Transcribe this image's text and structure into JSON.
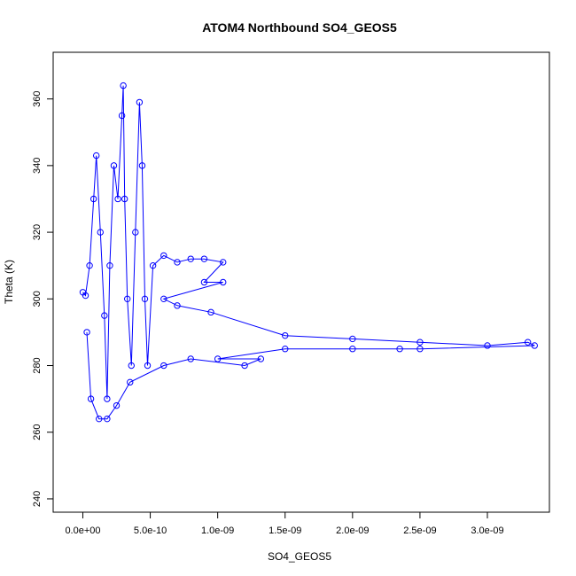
{
  "chart_data": {
    "type": "scatter",
    "title": "ATOM4 Northbound SO4_GEOS5",
    "xlabel": "SO4_GEOS5",
    "ylabel": "Theta (K)",
    "xlim": [
      -2.2e-10,
      3.46e-09
    ],
    "ylim": [
      236,
      374
    ],
    "x_ticks": [
      0,
      5e-10,
      1e-09,
      1.5e-09,
      2e-09,
      2.5e-09,
      3e-09
    ],
    "x_tick_labels": [
      "0.0e+00",
      "5.0e-10",
      "1.0e-09",
      "1.5e-09",
      "2.0e-09",
      "2.5e-09",
      "3.0e-09"
    ],
    "y_ticks": [
      240,
      260,
      280,
      300,
      320,
      340,
      360
    ],
    "y_tick_labels": [
      "240",
      "260",
      "280",
      "300",
      "320",
      "340",
      "360"
    ],
    "grid": false,
    "legend": "none",
    "color": "#0000ff",
    "marker": "open-circle",
    "connected": true,
    "series": [
      {
        "points": [
          [
            0.0,
            302
          ],
          [
            2e-11,
            301
          ],
          [
            5e-11,
            310
          ],
          [
            8e-11,
            330
          ],
          [
            1e-10,
            343
          ],
          [
            1.3e-10,
            320
          ],
          [
            1.6e-10,
            295
          ],
          [
            1.8e-10,
            270
          ],
          [
            2e-10,
            310
          ],
          [
            2.3e-10,
            340
          ],
          [
            2.6e-10,
            330
          ],
          [
            2.9e-10,
            355
          ],
          [
            3e-10,
            364
          ],
          [
            3.1e-10,
            330
          ],
          [
            3.3e-10,
            300
          ],
          [
            3.6e-10,
            280
          ],
          [
            3.9e-10,
            320
          ],
          [
            4.2e-10,
            359
          ],
          [
            4.4e-10,
            340
          ],
          [
            4.6e-10,
            300
          ],
          [
            4.8e-10,
            280
          ],
          [
            5.2e-10,
            310
          ],
          [
            6e-10,
            313
          ],
          [
            7e-10,
            311
          ],
          [
            8e-10,
            312
          ],
          [
            9e-10,
            312
          ],
          [
            1.04e-09,
            311
          ],
          [
            9e-10,
            305
          ],
          [
            1.04e-09,
            305
          ],
          [
            6e-10,
            300
          ],
          [
            7e-10,
            298
          ],
          [
            9.5e-10,
            296
          ],
          [
            1.5e-09,
            289
          ],
          [
            2e-09,
            288
          ],
          [
            2.5e-09,
            287
          ],
          [
            3e-09,
            286
          ],
          [
            3.3e-09,
            287
          ],
          [
            3.35e-09,
            286
          ],
          [
            2.5e-09,
            285
          ],
          [
            2.35e-09,
            285
          ],
          [
            2e-09,
            285
          ],
          [
            1.5e-09,
            285
          ],
          [
            1e-09,
            282
          ],
          [
            1.32e-09,
            282
          ],
          [
            1.2e-09,
            280
          ],
          [
            8e-10,
            282
          ],
          [
            6e-10,
            280
          ],
          [
            3.5e-10,
            275
          ],
          [
            2.5e-10,
            268
          ],
          [
            1.8e-10,
            264
          ],
          [
            1.2e-10,
            264
          ],
          [
            6e-11,
            270
          ],
          [
            3e-11,
            290
          ]
        ]
      }
    ]
  }
}
